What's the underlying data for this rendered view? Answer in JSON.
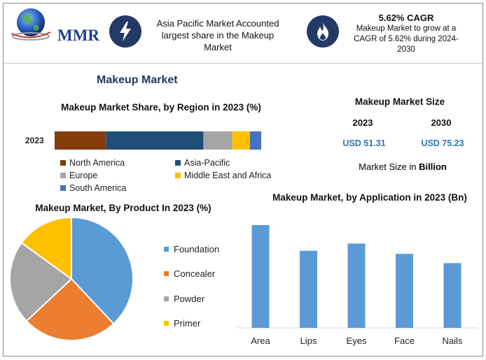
{
  "header": {
    "logo_text": "MMR",
    "info_left": "Asia Pacific Market Accounted largest share in the Makeup Market",
    "cagr_title": "5.62% CAGR",
    "cagr_body": "Makeup Market to grow at a CAGR of 5.62% during 2024-2030"
  },
  "main_title": "Makeup Market",
  "market_size": {
    "title": "Makeup Market Size",
    "years": [
      "2023",
      "2030"
    ],
    "values": [
      "USD 51.31",
      "USD 75.23"
    ],
    "unit_prefix": "Market Size in ",
    "unit_bold": "Billion"
  },
  "colors": {
    "north_america": "#843c0c",
    "asia_pacific": "#1f4e79",
    "europe": "#a5a5a5",
    "middle_east_africa": "#ffc000",
    "south_america": "#4472c4",
    "foundation": "#5b9bd5",
    "concealer": "#ed7d31",
    "powder": "#a5a5a5",
    "primer": "#ffc000",
    "application_bar": "#5b9bd5",
    "icon_circle": "#243a66"
  },
  "chart_data": [
    {
      "type": "bar",
      "orientation": "horizontal-stacked",
      "title": "Makeup Market Share, by Region in 2023 (%)",
      "categories": [
        "2023"
      ],
      "series": [
        {
          "name": "North America",
          "values": [
            25
          ]
        },
        {
          "name": "Asia-Pacific",
          "values": [
            47
          ]
        },
        {
          "name": "Europe",
          "values": [
            14
          ]
        },
        {
          "name": "Middle East and Africa",
          "values": [
            8.5
          ]
        },
        {
          "name": "South America",
          "values": [
            5.5
          ]
        }
      ],
      "xlim": [
        0,
        100
      ],
      "legend": "bottom"
    },
    {
      "type": "pie",
      "title": "Makeup Market, By Product In 2023 (%)",
      "categories": [
        "Foundation",
        "Concealer",
        "Powder",
        "Primer"
      ],
      "values": [
        38,
        25,
        22,
        15
      ],
      "legend": "right"
    },
    {
      "type": "bar",
      "title": "Makeup Market, by Application in 2023 (Bn)",
      "categories": [
        "Area",
        "Lips",
        "Eyes",
        "Face",
        "Nails"
      ],
      "values": [
        100,
        75,
        82,
        72,
        63
      ],
      "grid": false
    }
  ]
}
